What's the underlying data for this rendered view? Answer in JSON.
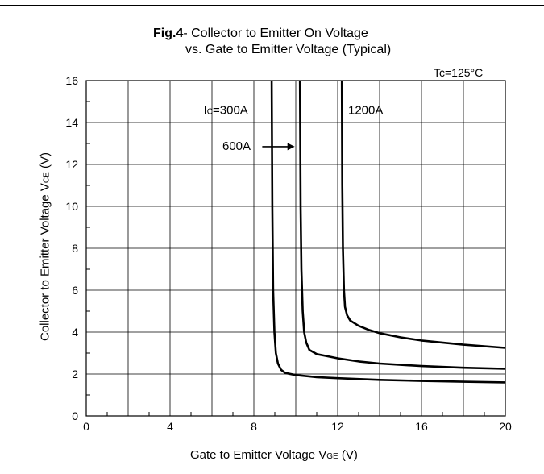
{
  "chart_data": {
    "type": "line",
    "title_bold": "Fig.4",
    "title_rest": "- Collector to Emitter On Voltage",
    "title_line2": "vs. Gate to Emitter Voltage (Typical)",
    "condition": "Tc=125°C",
    "xlabel_main": "Gate to Emitter Voltage V",
    "xlabel_sub": "GE",
    "xlabel_unit": " (V)",
    "ylabel_main": "Collector to Emitter Voltage V",
    "ylabel_sub": "CE",
    "ylabel_unit": " (V)",
    "xlim": [
      0,
      20
    ],
    "ylim": [
      0,
      16
    ],
    "xticks": [
      0,
      4,
      8,
      12,
      16,
      20
    ],
    "yticks": [
      0,
      2,
      4,
      6,
      8,
      10,
      12,
      14,
      16
    ],
    "grid": true,
    "series": [
      {
        "name": "Ic=300A",
        "x": [
          8.85,
          8.88,
          8.92,
          8.98,
          9.05,
          9.15,
          9.3,
          9.5,
          10,
          11,
          12,
          14,
          16,
          18,
          20
        ],
        "y": [
          16,
          10,
          6,
          4,
          3,
          2.5,
          2.2,
          2.05,
          1.95,
          1.85,
          1.8,
          1.72,
          1.67,
          1.63,
          1.6
        ]
      },
      {
        "name": "600A",
        "x": [
          10.2,
          10.23,
          10.27,
          10.33,
          10.4,
          10.5,
          10.65,
          11,
          11.5,
          12,
          13,
          14,
          16,
          18,
          20
        ],
        "y": [
          16,
          10,
          7,
          5,
          4,
          3.5,
          3.15,
          2.95,
          2.85,
          2.75,
          2.6,
          2.5,
          2.38,
          2.3,
          2.25
        ]
      },
      {
        "name": "1200A",
        "x": [
          12.2,
          12.22,
          12.25,
          12.3,
          12.35,
          12.45,
          12.6,
          13,
          13.5,
          14,
          15,
          16,
          18,
          20
        ],
        "y": [
          16,
          11,
          8,
          6,
          5.2,
          4.8,
          4.55,
          4.3,
          4.1,
          3.95,
          3.75,
          3.6,
          3.4,
          3.25
        ]
      }
    ],
    "annotations": {
      "ic_prefix": "I",
      "ic_sub": "C",
      "ic_value": "=300A",
      "label_600": "600A",
      "label_1200": "1200A"
    }
  }
}
